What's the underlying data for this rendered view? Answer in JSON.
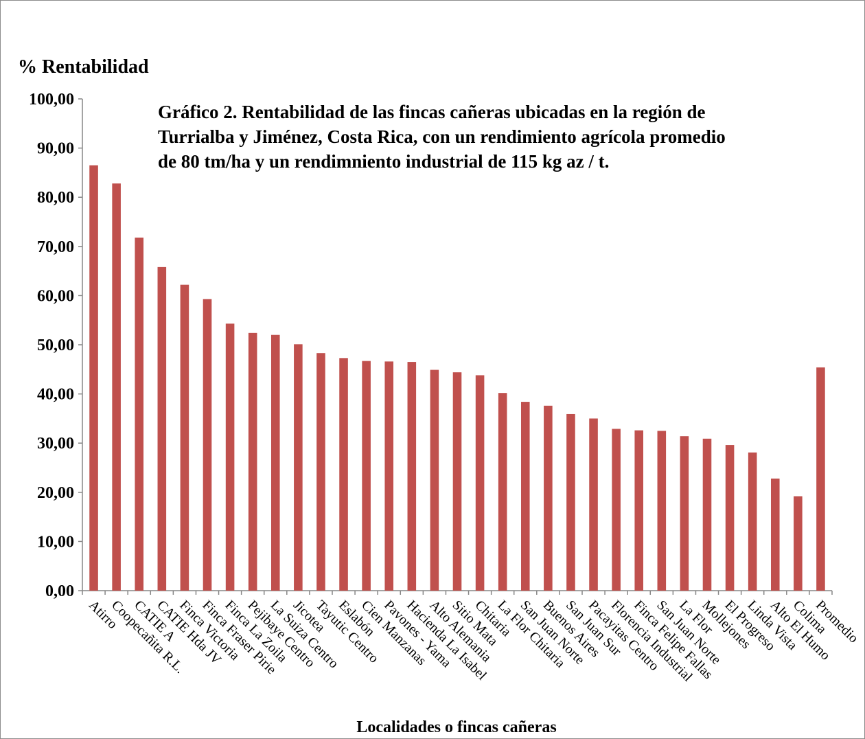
{
  "chart_data": {
    "type": "bar",
    "title_lines": [
      "Gráfico 2. Rentabilidad  de las fincas cañeras ubicadas en la región de",
      "Turrialba y Jiménez, Costa Rica, con un rendimiento agrícola promedio",
      "de 80 tm/ha y un rendimniento industrial de 115 kg az / t."
    ],
    "ylabel": "% Rentabilidad",
    "xlabel": "Localidades o fincas cañeras",
    "ylim": [
      0,
      100
    ],
    "yticks": [
      "0,00",
      "10,00",
      "20,00",
      "30,00",
      "40,00",
      "50,00",
      "60,00",
      "70,00",
      "80,00",
      "90,00",
      "100,00"
    ],
    "categories": [
      "Atirro",
      "Coopecañita R.L.",
      "CATIE A",
      "CATIE Hda JV",
      "Finca Victoria",
      "Finca Fraser Pirie",
      "Finca La Zoila",
      "Pejibaye Centro",
      "La Suiza Centro",
      "Jicotea",
      "Tayutic Centro",
      "Eslabón",
      "Cien Manzanas",
      "Pavones - Yama",
      "Hacienda La Isabel",
      "Alto Alemania",
      "Sitio Mata",
      "Chitaria",
      "La Flor Chitaria",
      "San Juan Norte",
      "Buenos Aires",
      "San Juan Sur",
      "Pacayitas Centro",
      "Florencia Industrial",
      "Finca Felipe Fallas",
      "San Juan Norte",
      "La Flor",
      "Mollejones",
      "El Progreso",
      "Linda Vista",
      "Alto El Humo",
      "Colima",
      "Promedio"
    ],
    "values": [
      86.5,
      82.8,
      71.8,
      65.8,
      62.2,
      59.3,
      54.3,
      52.4,
      52.0,
      50.1,
      48.3,
      47.3,
      46.7,
      46.6,
      46.5,
      44.9,
      44.4,
      43.8,
      40.2,
      38.4,
      37.6,
      35.9,
      35.0,
      32.9,
      32.6,
      32.5,
      31.4,
      30.9,
      29.6,
      28.1,
      22.8,
      19.2,
      45.4
    ],
    "colors": {
      "bar": "#c0504d",
      "axis": "#868686"
    },
    "grid": false,
    "legend": "none"
  }
}
